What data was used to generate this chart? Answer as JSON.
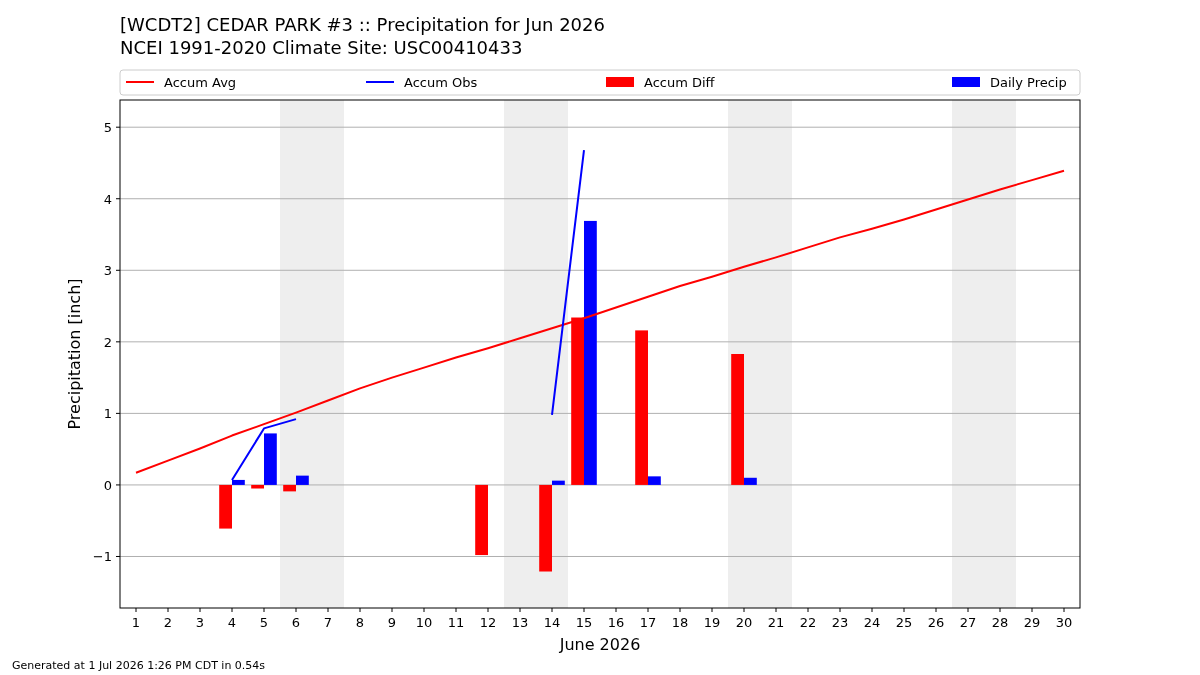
{
  "chart_data": {
    "type": "bar",
    "title": "[WCDT2] CEDAR PARK #3 :: Precipitation for Jun 2026",
    "subtitle": "NCEI 1991-2020 Climate Site: USC00410433",
    "xlabel": "June 2026",
    "ylabel": "Precipitation [inch]",
    "x": [
      1,
      2,
      3,
      4,
      5,
      6,
      7,
      8,
      9,
      10,
      11,
      12,
      13,
      14,
      15,
      16,
      17,
      18,
      19,
      20,
      21,
      22,
      23,
      24,
      25,
      26,
      27,
      28,
      29,
      30
    ],
    "series": [
      {
        "name": "Accum Avg",
        "type": "line",
        "color": "#ff0000",
        "values": [
          0.17,
          0.34,
          0.51,
          0.69,
          0.85,
          1.01,
          1.18,
          1.35,
          1.5,
          1.64,
          1.78,
          1.91,
          2.05,
          2.19,
          2.33,
          2.48,
          2.63,
          2.78,
          2.91,
          3.05,
          3.18,
          3.32,
          3.46,
          3.58,
          3.71,
          3.85,
          3.99,
          4.13,
          4.26,
          4.39
        ]
      },
      {
        "name": "Accum Obs",
        "type": "line",
        "color": "#0000ff",
        "values": [
          null,
          null,
          null,
          0.07,
          0.79,
          0.92,
          null,
          null,
          null,
          null,
          null,
          null,
          null,
          0.98,
          4.68,
          null,
          null,
          null,
          null,
          null,
          null,
          null,
          null,
          null,
          null,
          null,
          null,
          null,
          null,
          null
        ]
      },
      {
        "name": "Accum Diff",
        "color": "#ff0000",
        "values": [
          null,
          null,
          null,
          -0.61,
          -0.05,
          -0.09,
          null,
          null,
          null,
          null,
          null,
          -0.98,
          null,
          -1.21,
          2.34,
          null,
          2.16,
          null,
          null,
          1.83,
          null,
          null,
          null,
          null,
          null,
          null,
          null,
          null,
          null,
          null
        ]
      },
      {
        "name": "Daily Precip",
        "color": "#0000ff",
        "values": [
          null,
          null,
          null,
          0.07,
          0.72,
          0.13,
          null,
          null,
          null,
          null,
          null,
          null,
          null,
          0.06,
          3.69,
          null,
          0.12,
          null,
          null,
          0.1,
          null,
          null,
          null,
          null,
          null,
          null,
          null,
          null,
          null,
          null
        ]
      }
    ],
    "xlim": [
      0.5,
      30.5
    ],
    "xticks": [
      1,
      2,
      3,
      4,
      5,
      6,
      7,
      8,
      9,
      10,
      11,
      12,
      13,
      14,
      15,
      16,
      17,
      18,
      19,
      20,
      21,
      22,
      23,
      24,
      25,
      26,
      27,
      28,
      29,
      30
    ],
    "ylim": [
      -1.72,
      5.38
    ],
    "yticks": [
      {
        "value": -1,
        "label": "−1"
      },
      0,
      1,
      2,
      3,
      4,
      5
    ],
    "bands": [
      {
        "axis": "x",
        "from": 5.5,
        "to": 7.5,
        "color": "#eeeeee"
      },
      {
        "axis": "x",
        "from": 12.5,
        "to": 14.5,
        "color": "#eeeeee"
      },
      {
        "axis": "x",
        "from": 19.5,
        "to": 21.5,
        "color": "#eeeeee"
      },
      {
        "axis": "x",
        "from": 26.5,
        "to": 28.5,
        "color": "#eeeeee"
      }
    ],
    "grid": "y",
    "legend": "top",
    "annotations": [
      "Generated at 1 Jul 2026 1:26 PM CDT in 0.54s"
    ]
  }
}
